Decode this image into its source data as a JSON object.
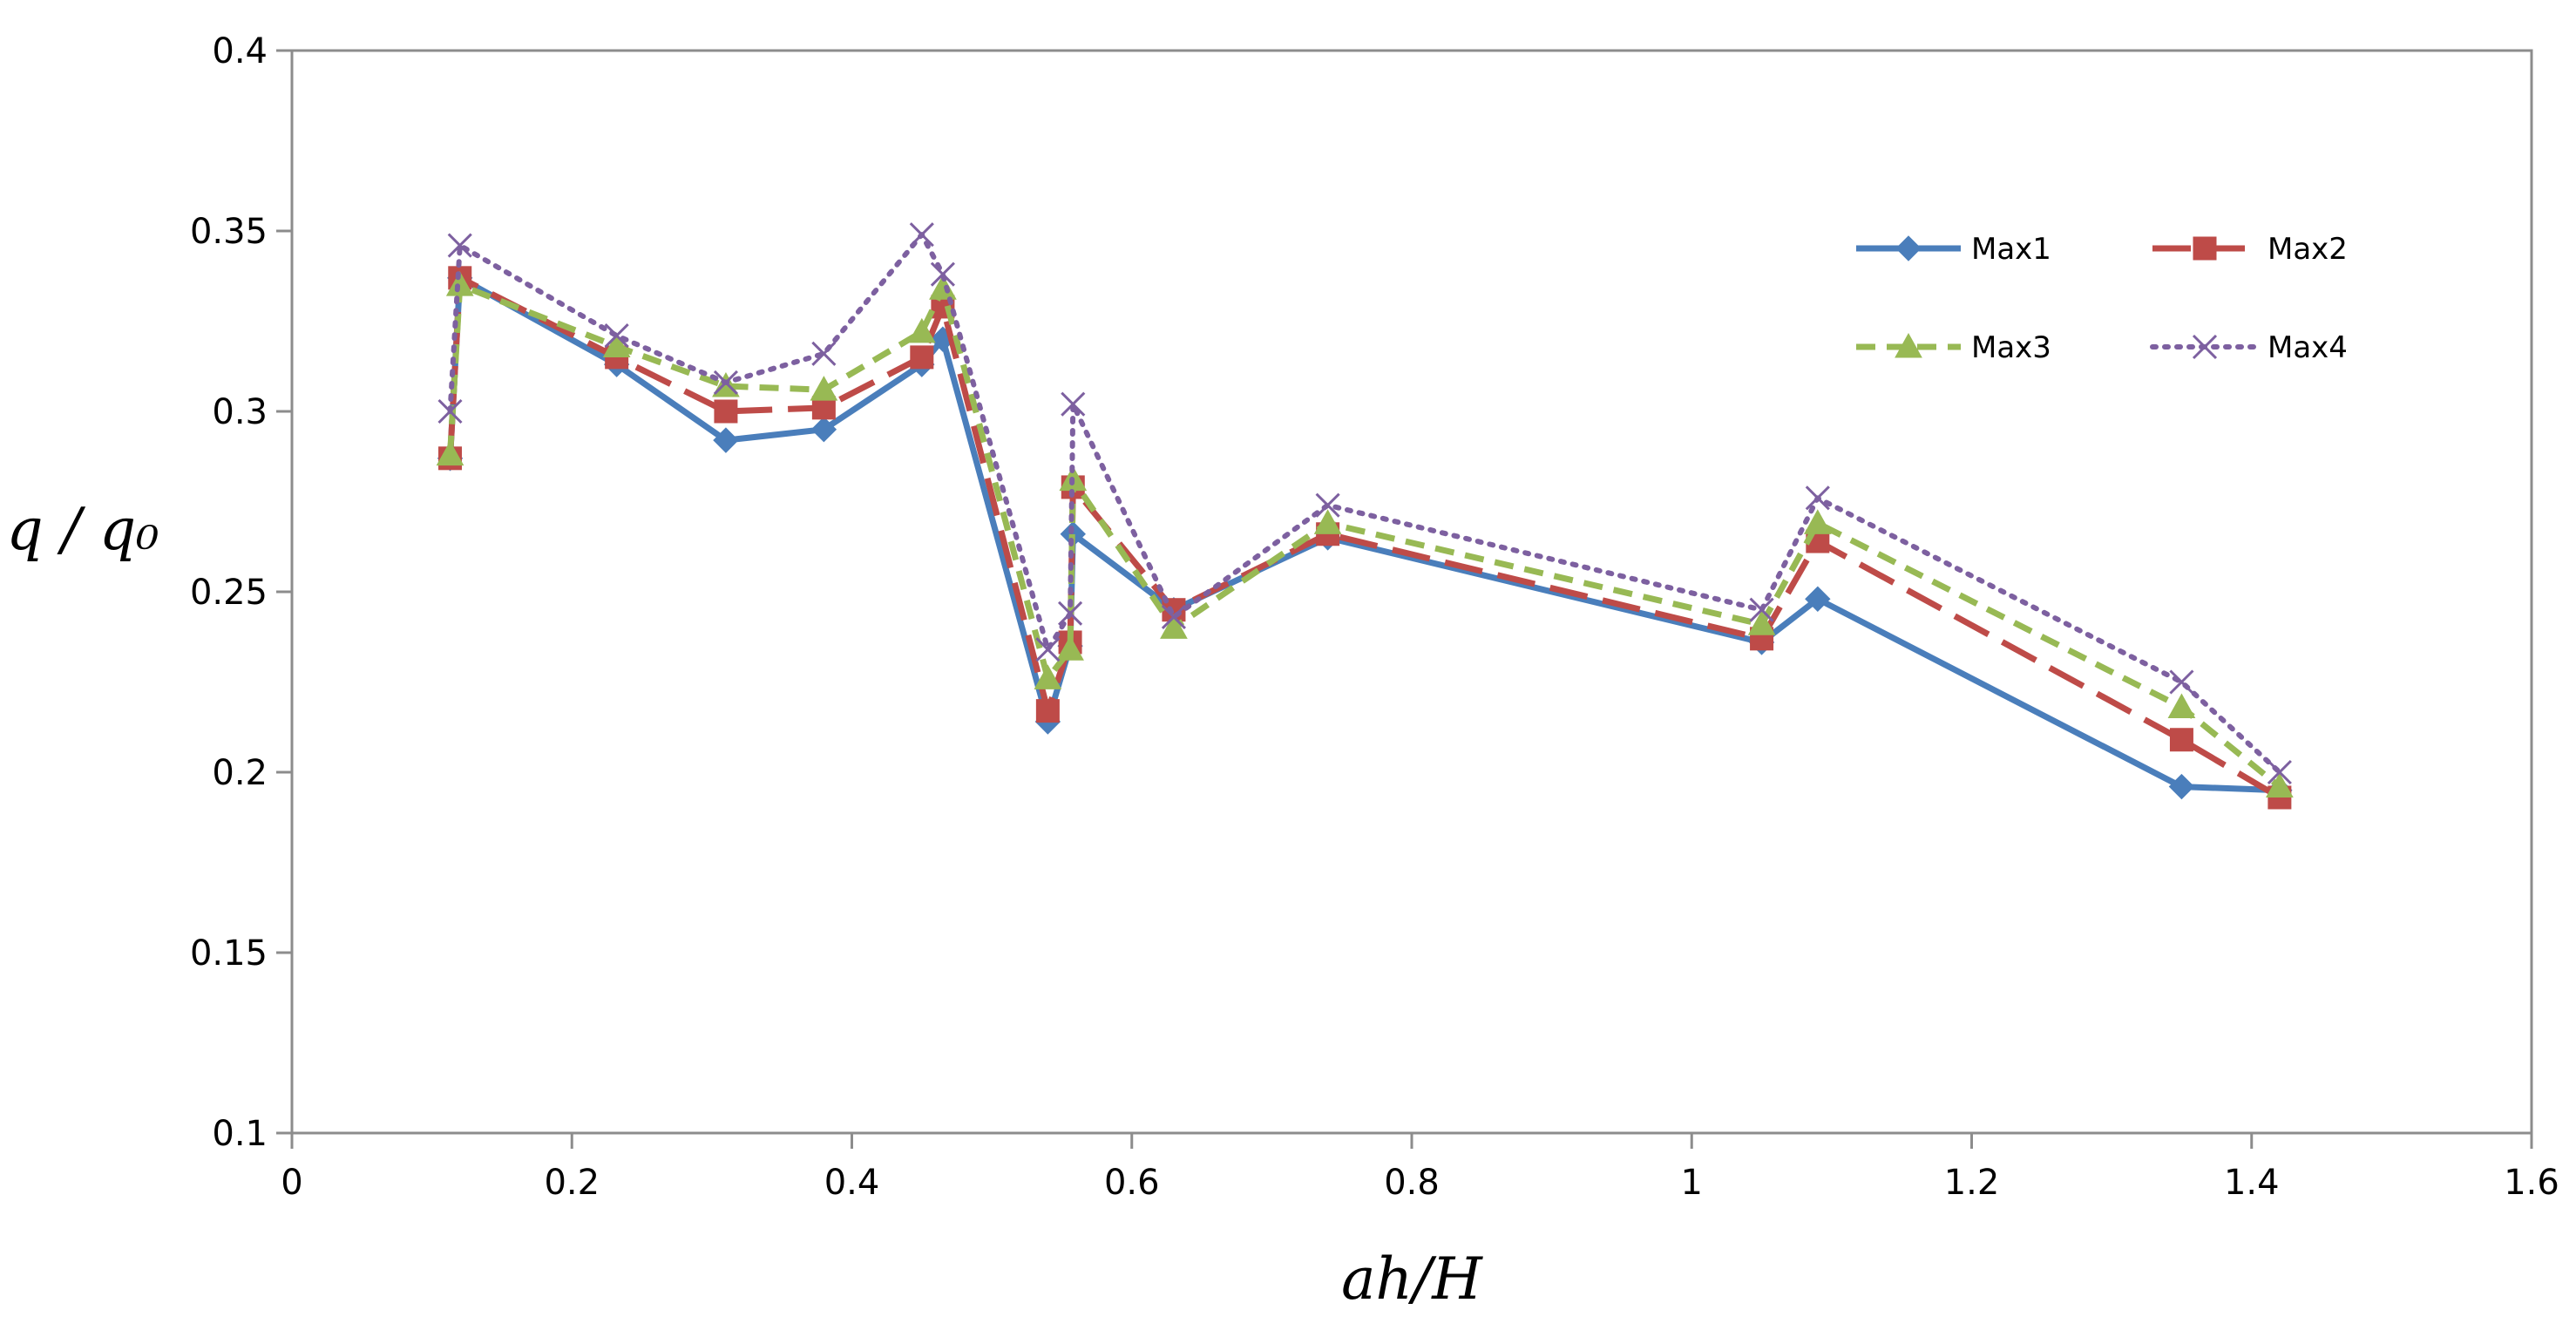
{
  "chart_data": {
    "type": "line",
    "title": "",
    "xlabel": "ah/H",
    "ylabel": "q / q₀",
    "xlim": [
      0,
      1.6
    ],
    "ylim": [
      0.1,
      0.4
    ],
    "x_ticks": [
      "0",
      "0.2",
      "0.4",
      "0.6",
      "0.8",
      "1",
      "1.2",
      "1.4",
      "1.6"
    ],
    "y_ticks": [
      "0.1",
      "0.15",
      "0.2",
      "0.25",
      "0.3",
      "0.35",
      "0.4"
    ],
    "grid": false,
    "legend_position": "top-right",
    "x": [
      0.113,
      0.12,
      0.232,
      0.31,
      0.38,
      0.45,
      0.465,
      0.54,
      0.556,
      0.558,
      0.63,
      0.74,
      1.05,
      1.09,
      1.35,
      1.42
    ],
    "series": [
      {
        "name": "Max1",
        "color": "#4a7ebb",
        "marker": "diamond",
        "dash": "solid",
        "values": [
          0.287,
          0.337,
          0.313,
          0.292,
          0.295,
          0.313,
          0.32,
          0.214,
          0.235,
          0.266,
          0.245,
          0.265,
          0.236,
          0.248,
          0.196,
          0.195
        ]
      },
      {
        "name": "Max2",
        "color": "#be4b48",
        "marker": "square",
        "dash": "long-dash",
        "values": [
          0.287,
          0.337,
          0.315,
          0.3,
          0.301,
          0.315,
          0.329,
          0.217,
          0.236,
          0.279,
          0.245,
          0.266,
          0.237,
          0.264,
          0.209,
          0.193
        ]
      },
      {
        "name": "Max3",
        "color": "#98b954",
        "marker": "triangle",
        "dash": "dash",
        "values": [
          0.288,
          0.335,
          0.318,
          0.307,
          0.306,
          0.322,
          0.334,
          0.226,
          0.234,
          0.281,
          0.24,
          0.269,
          0.241,
          0.269,
          0.218,
          0.196
        ]
      },
      {
        "name": "Max4",
        "color": "#7d60a0",
        "marker": "x",
        "dash": "dot",
        "values": [
          0.3,
          0.346,
          0.321,
          0.308,
          0.316,
          0.349,
          0.338,
          0.234,
          0.244,
          0.302,
          0.243,
          0.274,
          0.245,
          0.276,
          0.225,
          0.2
        ]
      }
    ]
  }
}
